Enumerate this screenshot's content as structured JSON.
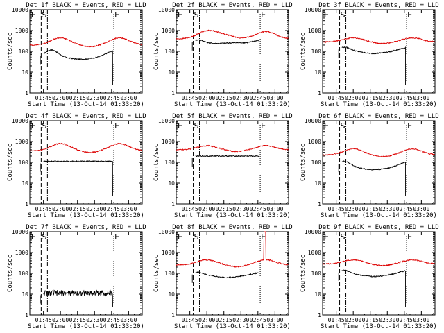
{
  "chart_data": [
    {
      "type": "line",
      "title": "Det 1f BLACK = Events, RED = LLD",
      "xlabel": "Start Time (13-Oct-14 01:33:20)",
      "ylabel": "Counts/sec",
      "xticks": [
        "01:45",
        "02:00",
        "02:15",
        "02:30",
        "02:45",
        "03:00"
      ],
      "yticks": [
        "1",
        "10",
        "100",
        "1000",
        "10000"
      ],
      "y_scale": "log",
      "ylim": [
        1,
        10000
      ],
      "markers": [
        {
          "label": "E",
          "time": "01:33"
        },
        {
          "label": "S",
          "time": "01:43"
        },
        {
          "label": "E",
          "time": "02:47"
        }
      ],
      "series": [
        {
          "name": "Events",
          "color": "#000000",
          "profile": "black1"
        },
        {
          "name": "LLD",
          "color": "#dd0000",
          "profile": "red1"
        }
      ]
    },
    {
      "type": "line",
      "title": "Det 2f BLACK = Events, RED = LLD",
      "xlabel": "Start Time (13-Oct-14 01:33:20)",
      "ylabel": "Counts/sec",
      "xticks": [
        "01:45",
        "02:00",
        "02:15",
        "02:30",
        "02:45",
        "03:00"
      ],
      "yticks": [
        "1",
        "10",
        "100",
        "1000",
        "10000"
      ],
      "y_scale": "log",
      "ylim": [
        1,
        10000
      ],
      "markers": [
        {
          "label": "E",
          "time": "01:33"
        },
        {
          "label": "S",
          "time": "01:48"
        },
        {
          "label": "E",
          "time": "02:47"
        }
      ],
      "series": [
        {
          "name": "Events",
          "color": "#000000",
          "profile": "black2"
        },
        {
          "name": "LLD",
          "color": "#dd0000",
          "profile": "red2"
        }
      ]
    },
    {
      "type": "line",
      "title": "Det 3f BLACK = Events, RED = LLD",
      "xlabel": "Start Time (13-Oct-14 01:33:20)",
      "ylabel": "Counts/sec",
      "xticks": [
        "01:45",
        "02:00",
        "02:15",
        "02:30",
        "02:45",
        "03:00"
      ],
      "yticks": [
        "1",
        "10",
        "100",
        "1000",
        "10000"
      ],
      "y_scale": "log",
      "ylim": [
        1,
        10000
      ],
      "markers": [
        {
          "label": "E",
          "time": "01:33"
        },
        {
          "label": "S",
          "time": "01:48"
        },
        {
          "label": "E",
          "time": "02:47"
        }
      ],
      "series": [
        {
          "name": "Events",
          "color": "#000000",
          "profile": "black3"
        },
        {
          "name": "LLD",
          "color": "#dd0000",
          "profile": "red3"
        }
      ]
    },
    {
      "type": "line",
      "title": "Det 4f BLACK = Events, RED = LLD",
      "xlabel": "Start Time (13-Oct-14 01:33:20)",
      "ylabel": "Counts/sec",
      "xticks": [
        "01:45",
        "02:00",
        "02:15",
        "02:30",
        "02:45",
        "03:00"
      ],
      "yticks": [
        "1",
        "10",
        "100",
        "1000",
        "10000"
      ],
      "y_scale": "log",
      "ylim": [
        1,
        10000
      ],
      "markers": [
        {
          "label": "E",
          "time": "01:33"
        },
        {
          "label": "S",
          "time": "01:43"
        },
        {
          "label": "E",
          "time": "02:47"
        }
      ],
      "series": [
        {
          "name": "Events",
          "color": "#000000",
          "profile": "black4"
        },
        {
          "name": "LLD",
          "color": "#dd0000",
          "profile": "red4"
        }
      ]
    },
    {
      "type": "line",
      "title": "Det 5f BLACK = Events, RED = LLD",
      "xlabel": "Start Time (13-Oct-14 01:33:20)",
      "ylabel": "Counts/sec",
      "xticks": [
        "01:45",
        "02:00",
        "02:15",
        "02:30",
        "02:45",
        "03:00"
      ],
      "yticks": [
        "1",
        "10",
        "100",
        "1000",
        "10000"
      ],
      "y_scale": "log",
      "ylim": [
        1,
        10000
      ],
      "markers": [
        {
          "label": "E",
          "time": "01:33"
        },
        {
          "label": "S",
          "time": "01:48"
        },
        {
          "label": "E",
          "time": "02:47"
        }
      ],
      "series": [
        {
          "name": "Events",
          "color": "#000000",
          "profile": "black5"
        },
        {
          "name": "LLD",
          "color": "#dd0000",
          "profile": "red5"
        }
      ]
    },
    {
      "type": "line",
      "title": "Det 6f BLACK = Events, RED = LLD",
      "xlabel": "Start Time (13-Oct-14 01:33:20)",
      "ylabel": "Counts/sec",
      "xticks": [
        "01:45",
        "02:00",
        "02:15",
        "02:30",
        "02:45",
        "03:00"
      ],
      "yticks": [
        "1",
        "10",
        "100",
        "1000",
        "10000"
      ],
      "y_scale": "log",
      "ylim": [
        1,
        10000
      ],
      "markers": [
        {
          "label": "E",
          "time": "01:33"
        },
        {
          "label": "S",
          "time": "01:48"
        },
        {
          "label": "E",
          "time": "02:47"
        }
      ],
      "series": [
        {
          "name": "Events",
          "color": "#000000",
          "profile": "black6"
        },
        {
          "name": "LLD",
          "color": "#dd0000",
          "profile": "red6"
        }
      ]
    },
    {
      "type": "line",
      "title": "Det 7f BLACK = Events, RED = LLD",
      "xlabel": "Start Time (13-Oct-14 01:33:20)",
      "ylabel": "Counts/sec",
      "xticks": [
        "01:45",
        "02:00",
        "02:15",
        "02:30",
        "02:45",
        "03:00"
      ],
      "yticks": [
        "1",
        "10",
        "100",
        "1000",
        "10000"
      ],
      "y_scale": "log",
      "ylim": [
        1,
        10000
      ],
      "markers": [
        {
          "label": "E",
          "time": "01:33"
        },
        {
          "label": "S",
          "time": "01:43"
        },
        {
          "label": "E",
          "time": "02:47"
        }
      ],
      "series": [
        {
          "name": "Events",
          "color": "#000000",
          "profile": "black7"
        }
      ]
    },
    {
      "type": "line",
      "title": "Det 8f BLACK = Events, RED = LLD",
      "xlabel": "Start Time (13-Oct-14 01:33:20)",
      "ylabel": "Counts/sec",
      "xticks": [
        "01:45",
        "02:00",
        "02:15",
        "02:30",
        "02:45",
        "03:00"
      ],
      "yticks": [
        "1",
        "10",
        "100",
        "1000",
        "10000"
      ],
      "y_scale": "log",
      "ylim": [
        1,
        10000
      ],
      "markers": [
        {
          "label": "E",
          "time": "01:33"
        },
        {
          "label": "S",
          "time": "01:48"
        },
        {
          "label": "E",
          "time": "02:47"
        }
      ],
      "series": [
        {
          "name": "Events",
          "color": "#000000",
          "profile": "black8"
        },
        {
          "name": "LLD",
          "color": "#dd0000",
          "profile": "red8"
        }
      ]
    },
    {
      "type": "line",
      "title": "Det 9f BLACK = Events, RED = LLD",
      "xlabel": "Start Time (13-Oct-14 01:33:20)",
      "ylabel": "Counts/sec",
      "xticks": [
        "01:45",
        "02:00",
        "02:15",
        "02:30",
        "02:45",
        "03:00"
      ],
      "yticks": [
        "1",
        "10",
        "100",
        "1000",
        "10000"
      ],
      "y_scale": "log",
      "ylim": [
        1,
        10000
      ],
      "markers": [
        {
          "label": "E",
          "time": "01:33"
        },
        {
          "label": "S",
          "time": "01:48"
        },
        {
          "label": "E",
          "time": "02:47"
        }
      ],
      "series": [
        {
          "name": "Events",
          "color": "#000000",
          "profile": "black9"
        },
        {
          "name": "LLD",
          "color": "#dd0000",
          "profile": "red9"
        }
      ]
    }
  ]
}
